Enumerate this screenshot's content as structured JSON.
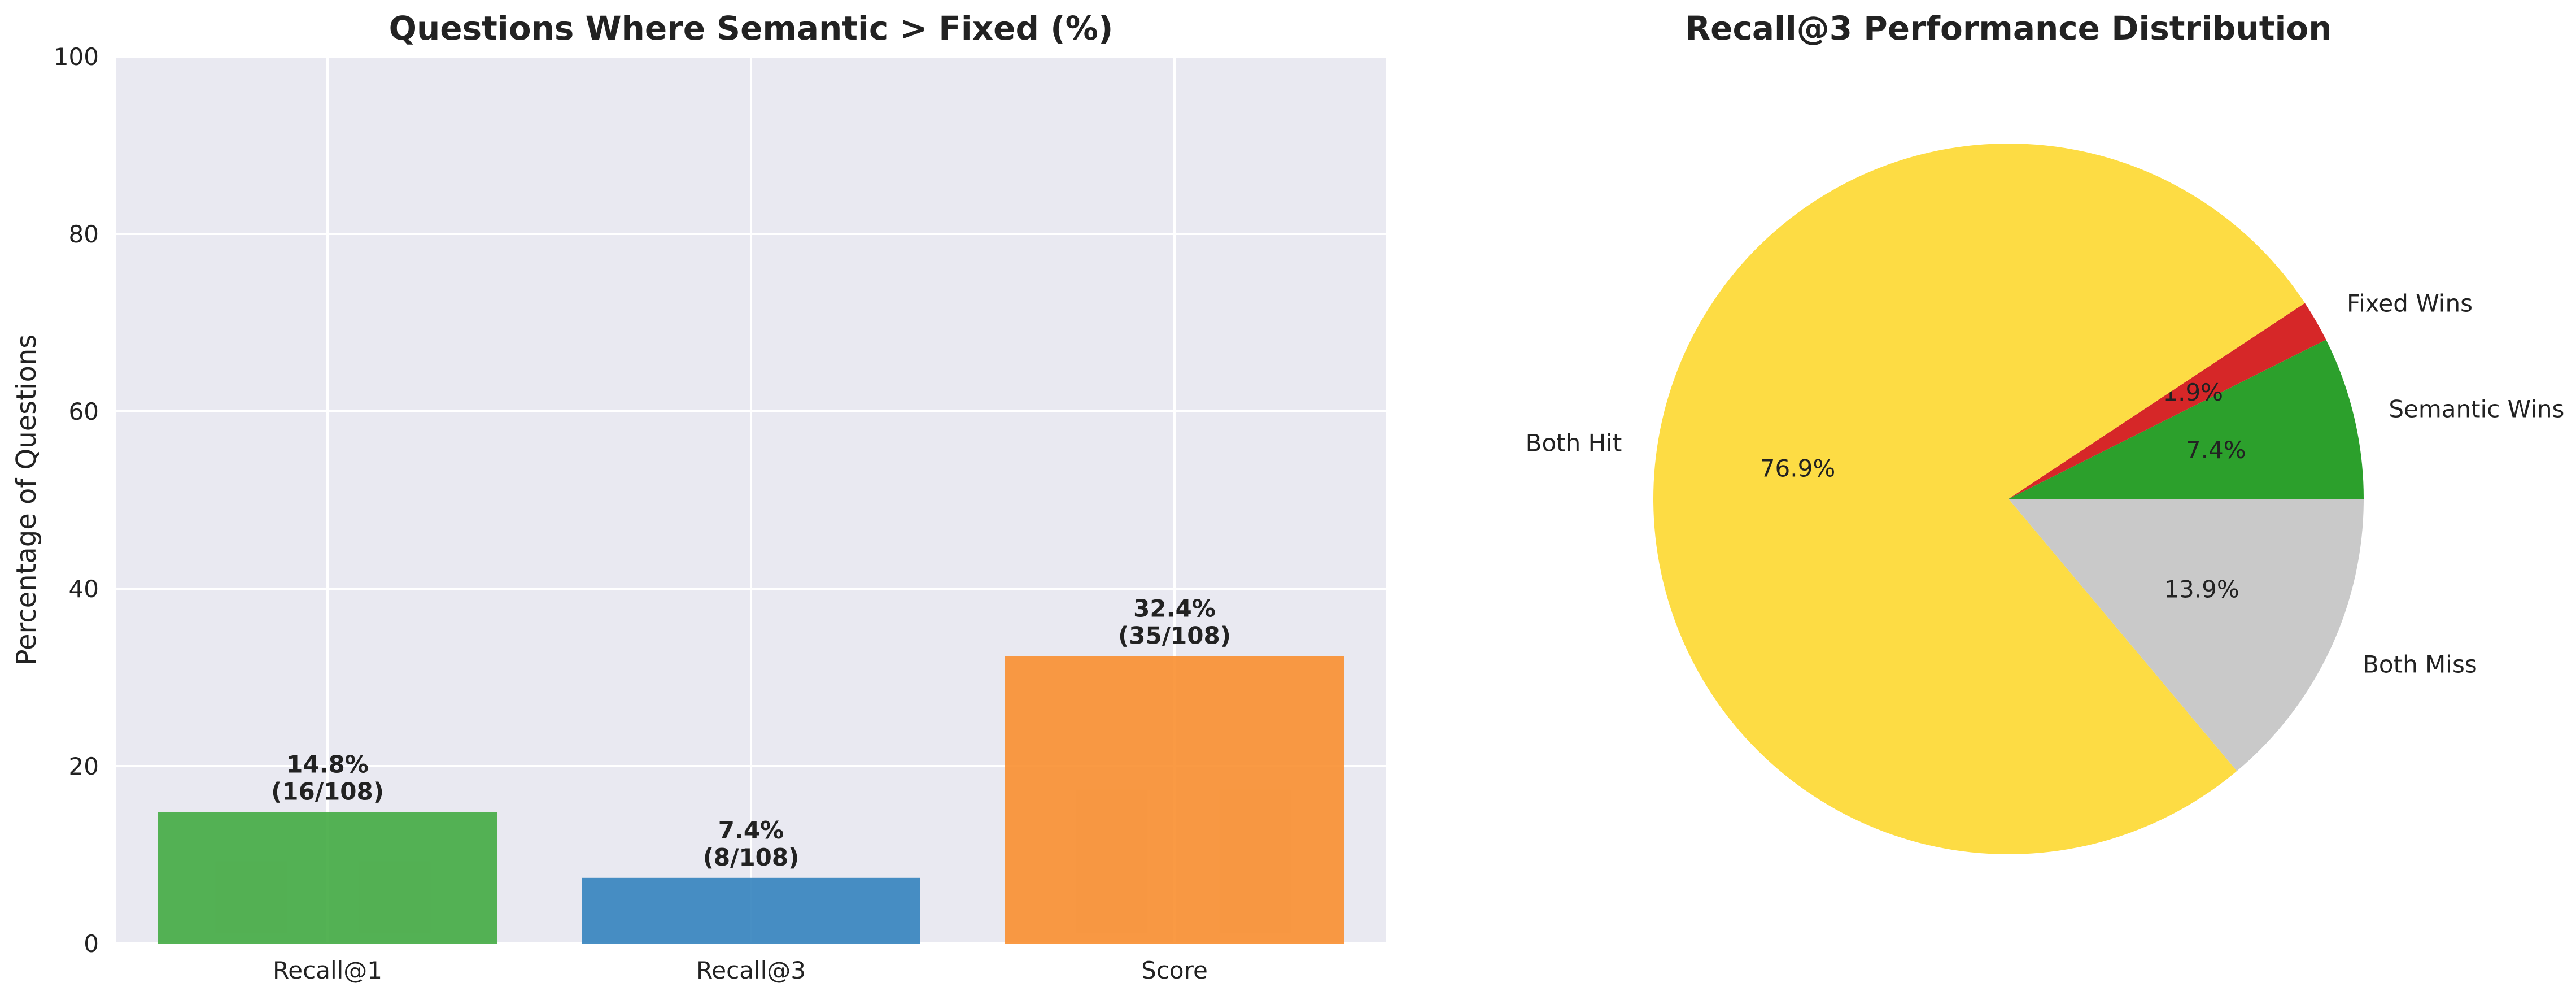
{
  "chart_data": [
    {
      "type": "bar",
      "title": "Questions Where Semantic > Fixed (%)",
      "xlabel": "",
      "ylabel": "Percentage of Questions",
      "ylim": [
        0,
        100
      ],
      "yticks": [
        "0",
        "20",
        "40",
        "60",
        "80",
        "100"
      ],
      "grid": true,
      "categories": [
        "Recall@1",
        "Recall@3",
        "Score"
      ],
      "values": [
        14.8,
        7.4,
        32.4
      ],
      "data_labels": [
        [
          "14.8%",
          "(16/108)"
        ],
        [
          "7.4%",
          "(8/108)"
        ],
        [
          "32.4%",
          "(35/108)"
        ]
      ],
      "colors": [
        "#3ea83e",
        "#2f7fbc",
        "#f98c2a"
      ],
      "background": "#e9e9f1"
    },
    {
      "type": "pie",
      "title": "Recall@3 Performance Distribution",
      "slices": [
        {
          "label": "Semantic Wins",
          "value": 7.4,
          "pct_label": "7.4%",
          "color": "#2ca02c"
        },
        {
          "label": "Fixed Wins",
          "value": 1.9,
          "pct_label": "1.9%",
          "color": "#d62728"
        },
        {
          "label": "Both Hit",
          "value": 76.9,
          "pct_label": "76.9%",
          "color": "#fddc44"
        },
        {
          "label": "Both Miss",
          "value": 13.9,
          "pct_label": "13.9%",
          "color": "#c9c9c9"
        }
      ],
      "start_angle_deg": 0,
      "direction": "counterclockwise"
    }
  ]
}
